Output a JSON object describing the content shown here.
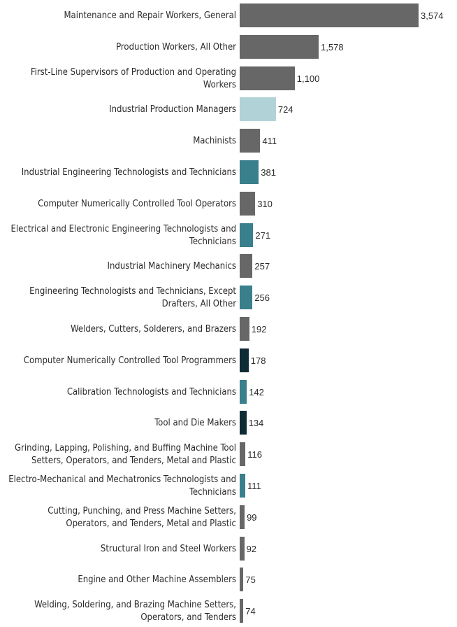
{
  "chart_data": {
    "type": "bar",
    "orientation": "horizontal",
    "title": "",
    "xlabel": "",
    "ylabel": "",
    "xlim": [
      0,
      3574
    ],
    "grid": false,
    "legend": "none",
    "colors": {
      "gray": "#676767",
      "light_teal": "#b1d3d8",
      "teal": "#3a7f8c",
      "dark_navy": "#0f2c35"
    },
    "categories": [
      "Maintenance and Repair Workers, General",
      "Production Workers, All Other",
      "First-Line Supervisors of Production and Operating Workers",
      "Industrial Production Managers",
      "Machinists",
      "Industrial Engineering Technologists and Technicians",
      "Computer Numerically Controlled Tool Operators",
      "Electrical and Electronic Engineering Technologists and Technicians",
      "Industrial Machinery Mechanics",
      "Engineering Technologists and Technicians, Except Drafters, All Other",
      "Welders, Cutters, Solderers, and Brazers",
      "Computer Numerically Controlled Tool Programmers",
      "Calibration Technologists and Technicians",
      "Tool and Die Makers",
      "Grinding, Lapping, Polishing, and Buffing Machine Tool Setters, Operators, and Tenders, Metal and Plastic",
      "Electro-Mechanical and Mechatronics Technologists and Technicians",
      "Cutting, Punching, and Press Machine Setters, Operators, and Tenders, Metal and Plastic",
      "Structural Iron and Steel Workers",
      "Engine and Other Machine Assemblers",
      "Welding, Soldering, and Brazing Machine Setters, Operators, and Tenders"
    ],
    "label_lines": [
      [
        "Maintenance and Repair Workers, General"
      ],
      [
        "Production Workers, All Other"
      ],
      [
        "First-Line Supervisors of Production and Operating",
        "Workers"
      ],
      [
        "Industrial Production Managers"
      ],
      [
        "Machinists"
      ],
      [
        "Industrial Engineering Technologists and Technicians"
      ],
      [
        "Computer Numerically Controlled Tool Operators"
      ],
      [
        "Electrical and Electronic Engineering Technologists and",
        "Technicians"
      ],
      [
        "Industrial Machinery Mechanics"
      ],
      [
        "Engineering Technologists and Technicians, Except",
        "Drafters, All Other"
      ],
      [
        "Welders, Cutters, Solderers, and Brazers"
      ],
      [
        "Computer Numerically Controlled Tool Programmers"
      ],
      [
        "Calibration Technologists and Technicians"
      ],
      [
        "Tool and Die Makers"
      ],
      [
        "Grinding, Lapping, Polishing, and Buffing Machine Tool",
        "Setters, Operators, and Tenders, Metal and Plastic"
      ],
      [
        "Electro-Mechanical and Mechatronics Technologists and",
        "Technicians"
      ],
      [
        "Cutting, Punching, and Press Machine Setters,",
        "Operators, and Tenders, Metal and Plastic"
      ],
      [
        "Structural Iron and Steel Workers"
      ],
      [
        "Engine and Other Machine Assemblers"
      ],
      [
        "Welding, Soldering, and Brazing Machine Setters,",
        "Operators, and Tenders"
      ]
    ],
    "values": [
      3574,
      1578,
      1100,
      724,
      411,
      381,
      310,
      271,
      257,
      256,
      192,
      178,
      142,
      134,
      116,
      111,
      99,
      92,
      75,
      74
    ],
    "value_labels": [
      "3,574",
      "1,578",
      "1,100",
      "724",
      "411",
      "381",
      "310",
      "271",
      "257",
      "256",
      "192",
      "178",
      "142",
      "134",
      "116",
      "111",
      "99",
      "92",
      "75",
      "74"
    ],
    "bar_colors": [
      "#676767",
      "#676767",
      "#676767",
      "#b1d3d8",
      "#676767",
      "#3a7f8c",
      "#676767",
      "#3a7f8c",
      "#676767",
      "#3a7f8c",
      "#676767",
      "#0f2c35",
      "#3a7f8c",
      "#0f2c35",
      "#676767",
      "#3a7f8c",
      "#676767",
      "#676767",
      "#676767",
      "#676767"
    ]
  }
}
